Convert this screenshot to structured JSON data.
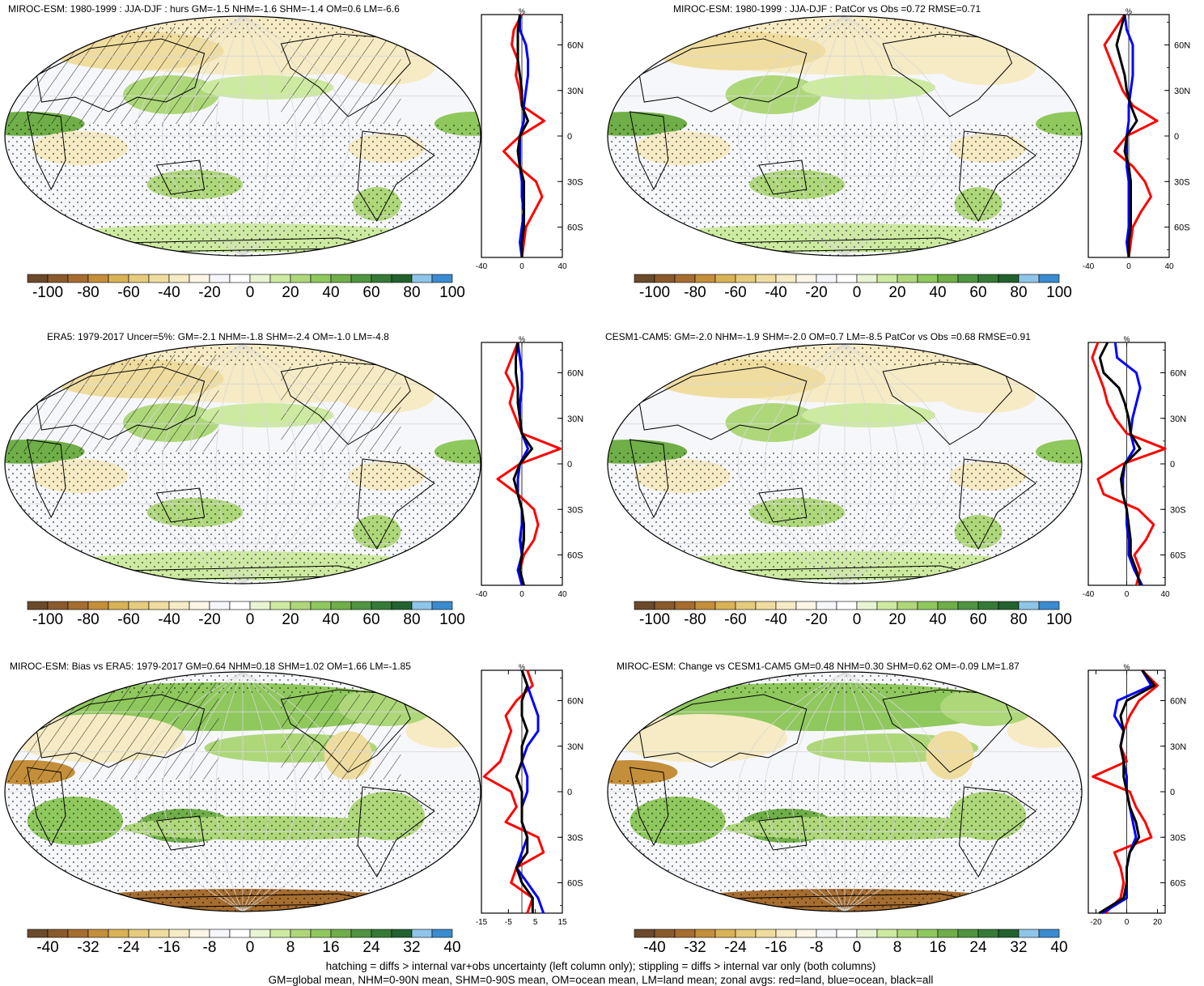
{
  "colorbar_colors": [
    "#6b4a2b",
    "#8a5a2c",
    "#a66d30",
    "#c48f3a",
    "#d9b255",
    "#e6cb7d",
    "#efdd9f",
    "#f6ebc4",
    "#fbf6e6",
    "#f6f7fb",
    "#ffffff",
    "#e9f4d4",
    "#cdeaa1",
    "#aed77a",
    "#8fc85d",
    "#6fae48",
    "#4f9440",
    "#367a37",
    "#22622e",
    "#8ec5e8",
    "#3a8bd0"
  ],
  "hatch_colors": {
    "land": "#ff0000",
    "ocean": "#0000ff",
    "all": "#000000"
  },
  "panels": [
    {
      "id": "p1",
      "title": "MIROC-ESM: 1980-1999 : JJA-DJF : hurs GM=-1.5 NHM=-1.6 SHM=-1.4 OM=0.6 LM=-6.6",
      "colorbar_labels": [
        "-100",
        "-80",
        "-60",
        "-40",
        "-20",
        "0",
        "20",
        "40",
        "60",
        "80",
        "100"
      ],
      "zonal_xticks": [
        "-40",
        "0",
        "40"
      ],
      "zonal_unit": "%",
      "hatched": true
    },
    {
      "id": "p2",
      "title": "MIROC-ESM: 1980-1999 : JJA-DJF : PatCor vs Obs =0.72 RMSE=0.71",
      "colorbar_labels": [
        "-100",
        "-80",
        "-60",
        "-40",
        "-20",
        "0",
        "20",
        "40",
        "60",
        "80",
        "100"
      ],
      "zonal_xticks": [
        "-40",
        "0",
        "40"
      ],
      "zonal_unit": "%",
      "hatched": false
    },
    {
      "id": "p3",
      "title": "ERA5: 1979-2017 Uncer=5%: GM=-2.1 NHM=-1.8 SHM=-2.4 OM=-1.0 LM=-4.8",
      "colorbar_labels": [
        "-100",
        "-80",
        "-60",
        "-40",
        "-20",
        "0",
        "20",
        "40",
        "60",
        "80",
        "100"
      ],
      "zonal_xticks": [
        "-40",
        "0",
        "40"
      ],
      "zonal_unit": "%",
      "hatched": true
    },
    {
      "id": "p4",
      "title": "CESM1-CAM5: GM=-2.0 NHM=-1.9 SHM=-2.0 OM=0.7 LM=-8.5 PatCor vs Obs =0.68 RMSE=0.91",
      "colorbar_labels": [
        "-100",
        "-80",
        "-60",
        "-40",
        "-20",
        "0",
        "20",
        "40",
        "60",
        "80",
        "100"
      ],
      "zonal_xticks": [
        "-40",
        "0",
        "40"
      ],
      "zonal_unit": "%",
      "hatched": false
    },
    {
      "id": "p5",
      "title": "MIROC-ESM: Bias vs ERA5: 1979-2017 GM=0.64 NHM=0.18 SHM=1.02 OM=1.66 LM=-1.85",
      "colorbar_labels": [
        "-40",
        "-32",
        "-24",
        "-16",
        "-8",
        "0",
        "8",
        "16",
        "24",
        "32",
        "40"
      ],
      "zonal_xticks": [
        "-15",
        "-5",
        "5",
        "15"
      ],
      "zonal_unit": "%",
      "hatched": true
    },
    {
      "id": "p6",
      "title": "MIROC-ESM: Change vs CESM1-CAM5 GM=0.48 NHM=0.30 SHM=0.62 OM=-0.09 LM=1.87",
      "colorbar_labels": [
        "-40",
        "-32",
        "-24",
        "-16",
        "-8",
        "0",
        "8",
        "16",
        "24",
        "32",
        "40"
      ],
      "zonal_xticks": [
        "-20",
        "0",
        "20"
      ],
      "zonal_unit": "%",
      "hatched": false
    }
  ],
  "zonal_lat_labels": [
    "60N",
    "30N",
    "0",
    "30S",
    "60S"
  ],
  "footer": {
    "line1": "hatching = diffs > internal var+obs uncertainty (left column only); stippling = diffs > internal var only (both columns)",
    "line2": "GM=global mean, NHM=0-90N mean, SHM=0-90S mean, OM=ocean mean, LM=land mean; zonal avgs: red=land, blue=ocean, black=all"
  },
  "chart_data": [
    {
      "type": "line",
      "title": "MIROC-ESM: 1980-1999 : JJA-DJF : hurs GM=-1.5 NHM=-1.6 SHM=-1.4 OM=0.6 LM=-6.6",
      "xlabel": "%",
      "xlim": [
        -40,
        40
      ],
      "y": [
        80,
        70,
        60,
        50,
        40,
        30,
        20,
        10,
        0,
        -10,
        -20,
        -30,
        -40,
        -50,
        -60,
        -70,
        -80
      ],
      "series": [
        {
          "name": "land",
          "color": "red",
          "values": [
            0,
            -8,
            -10,
            -4,
            -6,
            -2,
            0,
            22,
            -2,
            -18,
            -4,
            14,
            20,
            12,
            4,
            2,
            0
          ]
        },
        {
          "name": "ocean",
          "color": "blue",
          "values": [
            -2,
            -2,
            4,
            6,
            6,
            4,
            2,
            2,
            -2,
            -2,
            -2,
            0,
            0,
            2,
            0,
            -2,
            0
          ]
        },
        {
          "name": "all",
          "color": "black",
          "values": [
            -2,
            -4,
            -4,
            -4,
            -2,
            0,
            0,
            6,
            -2,
            -4,
            -2,
            2,
            2,
            2,
            2,
            0,
            0
          ]
        }
      ]
    },
    {
      "type": "line",
      "title": "MIROC-ESM: 1980-1999 : JJA-DJF : PatCor vs Obs =0.72 RMSE=0.71",
      "xlabel": "%",
      "xlim": [
        -40,
        40
      ],
      "y": [
        80,
        70,
        60,
        50,
        40,
        30,
        20,
        10,
        0,
        -10,
        -20,
        -30,
        -40,
        -50,
        -60,
        -70,
        -80
      ],
      "series": [
        {
          "name": "land",
          "color": "red",
          "values": [
            -4,
            -14,
            -24,
            -18,
            -12,
            -6,
            4,
            28,
            -2,
            -14,
            4,
            16,
            22,
            12,
            4,
            2,
            0
          ]
        },
        {
          "name": "ocean",
          "color": "blue",
          "values": [
            -4,
            -2,
            4,
            4,
            4,
            2,
            0,
            0,
            -2,
            -2,
            -2,
            0,
            0,
            0,
            0,
            -2,
            0
          ]
        },
        {
          "name": "all",
          "color": "black",
          "values": [
            -4,
            -8,
            -12,
            -8,
            -4,
            -2,
            2,
            8,
            -2,
            -4,
            0,
            2,
            2,
            2,
            2,
            0,
            0
          ]
        }
      ]
    },
    {
      "type": "line",
      "title": "ERA5: 1979-2017 Uncer=5%: GM=-2.1 NHM=-1.8 SHM=-2.4 OM=-1.0 LM=-4.8",
      "xlabel": "%",
      "xlim": [
        -40,
        40
      ],
      "y": [
        80,
        70,
        60,
        50,
        40,
        30,
        20,
        10,
        0,
        -10,
        -20,
        -30,
        -40,
        -50,
        -60,
        -70,
        -80
      ],
      "series": [
        {
          "name": "land",
          "color": "red",
          "values": [
            -4,
            -10,
            -16,
            -8,
            -12,
            -6,
            0,
            38,
            -2,
            -24,
            -4,
            12,
            16,
            12,
            2,
            -2,
            0
          ]
        },
        {
          "name": "ocean",
          "color": "blue",
          "values": [
            -4,
            -2,
            0,
            0,
            -2,
            -2,
            0,
            6,
            -2,
            -4,
            -4,
            0,
            0,
            -2,
            0,
            -4,
            0
          ]
        },
        {
          "name": "all",
          "color": "black",
          "values": [
            -4,
            -6,
            -6,
            -4,
            -4,
            -2,
            0,
            10,
            -2,
            -8,
            -4,
            0,
            2,
            2,
            0,
            -2,
            2
          ]
        }
      ]
    },
    {
      "type": "line",
      "title": "CESM1-CAM5: GM=-2.0 NHM=-1.9 SHM=-2.0 OM=0.7 LM=-8.5 PatCor vs Obs =0.68 RMSE=0.91",
      "xlabel": "%",
      "xlim": [
        -40,
        40
      ],
      "y": [
        80,
        70,
        60,
        50,
        40,
        30,
        20,
        10,
        0,
        -10,
        -20,
        -30,
        -40,
        -50,
        -60,
        -70,
        -80
      ],
      "series": [
        {
          "name": "land",
          "color": "red",
          "values": [
            -30,
            -36,
            -30,
            -24,
            -20,
            -12,
            0,
            40,
            -4,
            -30,
            -24,
            12,
            28,
            20,
            8,
            14,
            10
          ]
        },
        {
          "name": "ocean",
          "color": "blue",
          "values": [
            -12,
            -10,
            10,
            14,
            10,
            6,
            4,
            8,
            -2,
            -4,
            -4,
            0,
            0,
            2,
            2,
            8,
            16
          ]
        },
        {
          "name": "all",
          "color": "black",
          "values": [
            -20,
            -28,
            -24,
            -8,
            -2,
            2,
            4,
            14,
            -2,
            -6,
            -4,
            0,
            2,
            4,
            4,
            10,
            14
          ]
        }
      ]
    },
    {
      "type": "line",
      "title": "MIROC-ESM: Bias vs ERA5: 1979-2017 GM=0.64 NHM=0.18 SHM=1.02 OM=1.66 LM=-1.85",
      "xlabel": "%",
      "xlim": [
        -15,
        15
      ],
      "y": [
        80,
        70,
        60,
        50,
        40,
        30,
        20,
        10,
        0,
        -10,
        -20,
        -30,
        -40,
        -50,
        -60,
        -70,
        -80
      ],
      "series": [
        {
          "name": "land",
          "color": "red",
          "values": [
            2,
            4,
            -2,
            -6,
            -4,
            -6,
            -8,
            -14,
            -4,
            -2,
            -6,
            6,
            8,
            -2,
            -4,
            4,
            2
          ]
        },
        {
          "name": "ocean",
          "color": "blue",
          "values": [
            0,
            2,
            4,
            6,
            6,
            2,
            0,
            2,
            2,
            0,
            0,
            2,
            0,
            -2,
            2,
            6,
            8
          ]
        },
        {
          "name": "all",
          "color": "black",
          "values": [
            0,
            2,
            0,
            0,
            2,
            0,
            0,
            -2,
            0,
            0,
            0,
            2,
            2,
            -2,
            0,
            4,
            4
          ]
        }
      ]
    },
    {
      "type": "line",
      "title": "MIROC-ESM: Change vs CESM1-CAM5 GM=0.48 NHM=0.30 SHM=0.62 OM=-0.09 LM=1.87",
      "xlabel": "%",
      "xlim": [
        -25,
        25
      ],
      "y": [
        80,
        70,
        60,
        50,
        40,
        30,
        20,
        10,
        0,
        -10,
        -20,
        -30,
        -40,
        -50,
        -60,
        -70,
        -80
      ],
      "series": [
        {
          "name": "land",
          "color": "red",
          "values": [
            10,
            20,
            8,
            2,
            -2,
            -4,
            0,
            -22,
            2,
            6,
            12,
            16,
            -8,
            -4,
            -2,
            -4,
            -14
          ]
        },
        {
          "name": "ocean",
          "color": "blue",
          "values": [
            10,
            16,
            -6,
            -8,
            -2,
            -4,
            -2,
            0,
            0,
            2,
            4,
            6,
            2,
            0,
            0,
            0,
            -16
          ]
        },
        {
          "name": "all",
          "color": "black",
          "values": [
            10,
            18,
            0,
            -4,
            -2,
            -4,
            -2,
            -2,
            0,
            2,
            6,
            8,
            2,
            0,
            0,
            -2,
            -18
          ]
        }
      ]
    }
  ]
}
